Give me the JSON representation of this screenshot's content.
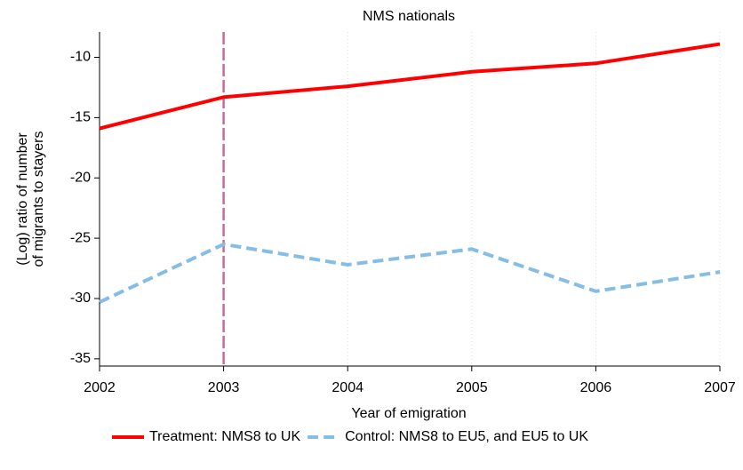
{
  "chart_data": {
    "type": "line",
    "title": "NMS nationals",
    "xlabel": "Year of emigration",
    "ylabel": [
      "(Log) ratio of number",
      "of migrants to stayers"
    ],
    "x": [
      2002,
      2003,
      2004,
      2005,
      2006,
      2007
    ],
    "series": [
      {
        "name": "Treatment: NMS8 to UK",
        "color": "#ff0000",
        "dash": "solid",
        "values": [
          -15.9,
          -13.3,
          -12.4,
          -11.2,
          -10.5,
          -8.9
        ]
      },
      {
        "name": "Control: NMS8 to EU5, and EU5 to UK",
        "color": "#86bde6",
        "dash": "dashed",
        "values": [
          -30.3,
          -25.5,
          -27.2,
          -25.9,
          -29.4,
          -27.8
        ]
      }
    ],
    "vline": {
      "x": 2003,
      "color": "#c96a9c"
    },
    "xlim": [
      2002,
      2007
    ],
    "xticks": [
      2002,
      2003,
      2004,
      2005,
      2006,
      2007
    ],
    "ylim": [
      -35.6,
      -7.9
    ],
    "yticks": [
      -35,
      -30,
      -25,
      -20,
      -15,
      -10
    ],
    "grid": "x",
    "legend": "bottom"
  }
}
